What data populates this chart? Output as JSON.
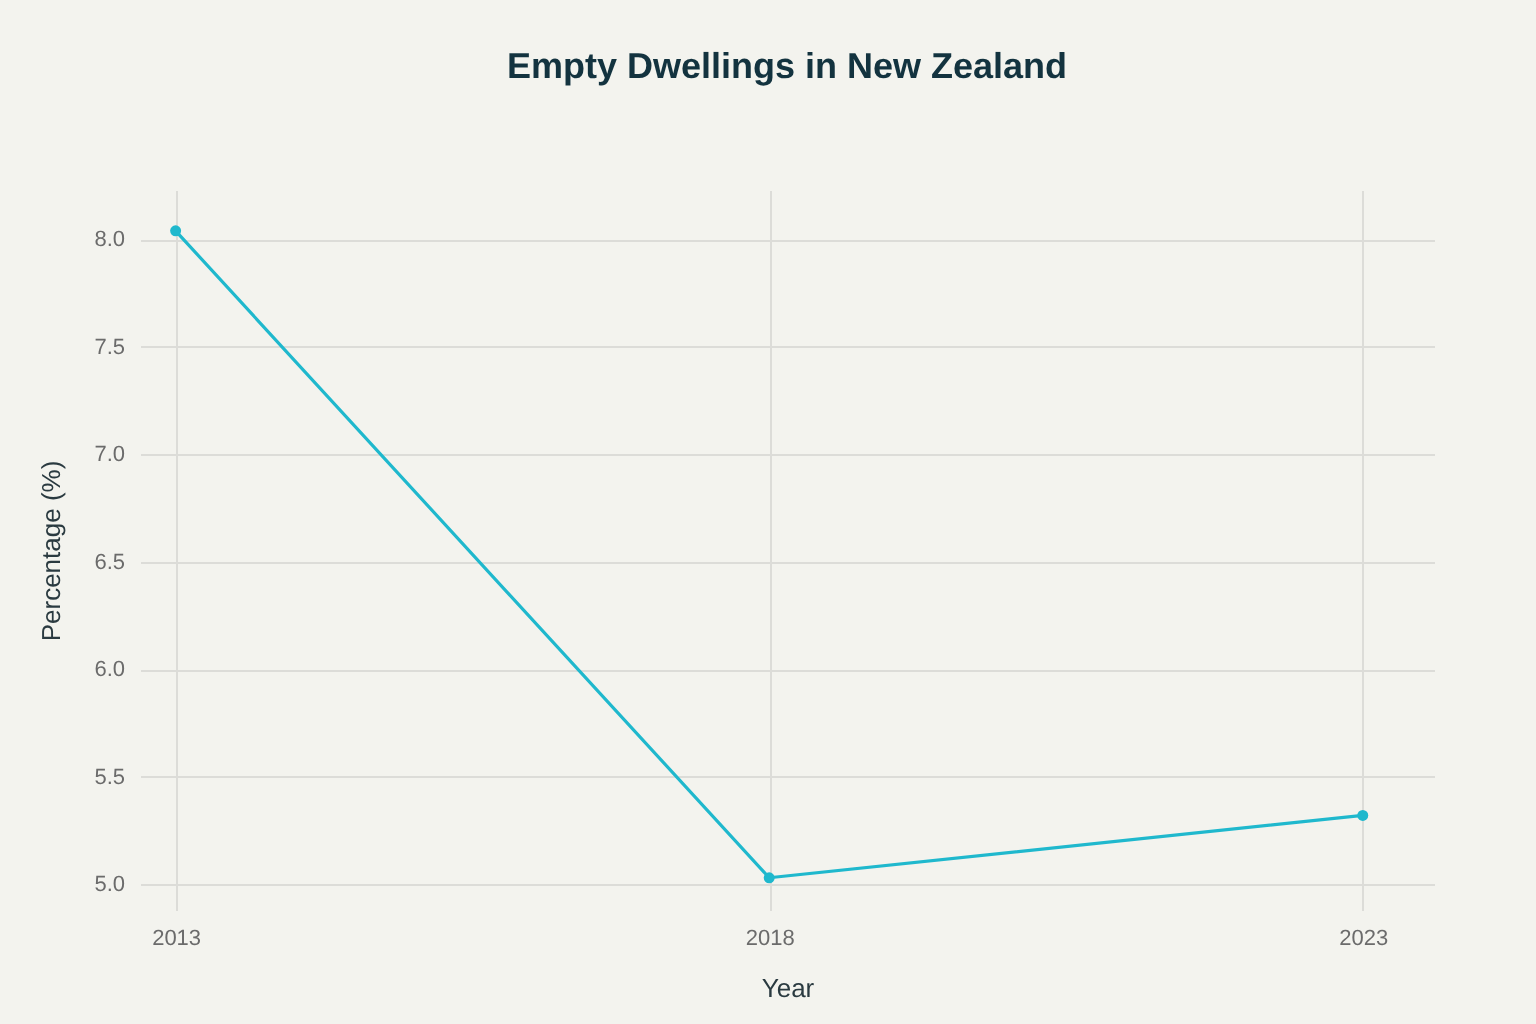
{
  "chart_data": {
    "type": "line",
    "title": "Empty Dwellings in New Zealand",
    "xlabel": "Year",
    "ylabel": "Percentage (%)",
    "x": [
      2013,
      2018,
      2023
    ],
    "series": [
      {
        "color": "#1fb8cd",
        "values": [
          8.04,
          5.03,
          5.32
        ]
      }
    ],
    "xlim": [
      2012.7,
      2023.6
    ],
    "xticks": [
      2013,
      2018,
      2023
    ],
    "ylim": [
      4.88,
      8.23
    ],
    "yticks": [
      {
        "value": 5,
        "label": "5.0"
      },
      {
        "value": 5.5,
        "label": "5.5"
      },
      {
        "value": 6,
        "label": "6.0"
      },
      {
        "value": 6.5,
        "label": "6.5"
      },
      {
        "value": 7,
        "label": "7.0"
      },
      {
        "value": 7.5,
        "label": "7.5"
      },
      {
        "value": 8,
        "label": "8.0"
      }
    ],
    "grid": true,
    "marker": "circle",
    "line_style": "solid"
  }
}
